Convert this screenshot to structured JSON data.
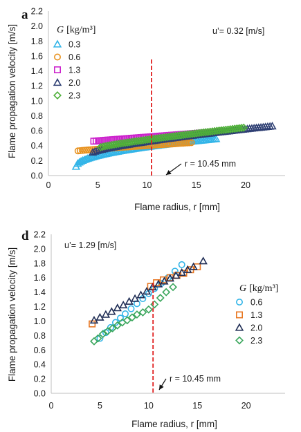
{
  "chart_data": [
    {
      "type": "scatter",
      "panel_letter": "a",
      "annotation_speed": "u’= 0.32 [m/s]",
      "xlabel": "Flame radius, r [mm]",
      "ylabel": "Flame propagation velocity [m/s]",
      "xlim": [
        0,
        24
      ],
      "ylim": [
        0,
        2.2
      ],
      "xticks": [
        0,
        5,
        10,
        15,
        20
      ],
      "yticks": [
        0.0,
        0.2,
        0.4,
        0.6,
        0.8,
        1.0,
        1.2,
        1.4,
        1.6,
        1.8,
        2.0,
        2.2
      ],
      "grid": false,
      "legend_title_symbol": "G",
      "legend_title_unit": "[kg/m³]",
      "legend_position": "top-left",
      "vline_x": 10.45,
      "vline_label": "r = 10.45 mm",
      "series": [
        {
          "name": "0.3",
          "marker": "triangle",
          "color": "#33b5e8",
          "x_start": 2.8,
          "x_end": 17.0,
          "y_start": 0.12,
          "y_end": 0.49,
          "curve": 0.5,
          "count": 85
        },
        {
          "name": "0.6",
          "marker": "circle",
          "color": "#e8921f",
          "x_start": 3.0,
          "x_end": 14.5,
          "y_start": 0.33,
          "y_end": 0.44,
          "curve": 0.9,
          "count": 55
        },
        {
          "name": "1.3",
          "marker": "square",
          "color": "#cc22cc",
          "x_start": 4.6,
          "x_end": 17.5,
          "y_start": 0.46,
          "y_end": 0.59,
          "curve": 1.0,
          "count": 55
        },
        {
          "name": "2.0",
          "marker": "triangle",
          "color": "#2e3f73",
          "x_start": 4.5,
          "x_end": 22.7,
          "y_start": 0.31,
          "y_end": 0.66,
          "curve": 0.75,
          "count": 80
        },
        {
          "name": "2.3",
          "marker": "diamond",
          "color": "#4fb03a",
          "x_start": 5.3,
          "x_end": 19.8,
          "y_start": 0.38,
          "y_end": 0.64,
          "curve": 0.85,
          "count": 65
        }
      ]
    },
    {
      "type": "scatter",
      "panel_letter": "d",
      "annotation_speed": "u’= 1.29 [m/s]",
      "xlabel": "Flame radius, r [mm]",
      "ylabel": "Flame propagation velocity [m/s]",
      "xlim": [
        0,
        24
      ],
      "ylim": [
        0,
        2.2
      ],
      "xticks": [
        0,
        5,
        10,
        15,
        20
      ],
      "yticks": [
        0.0,
        0.2,
        0.4,
        0.6,
        0.8,
        1.0,
        1.2,
        1.4,
        1.6,
        1.8,
        2.0,
        2.2
      ],
      "grid": false,
      "legend_title_symbol": "G",
      "legend_title_unit": "[kg/m³]",
      "legend_position": "right",
      "vline_x": 10.45,
      "vline_label": "r = 10.45 mm",
      "series": [
        {
          "name": "0.6",
          "marker": "circle",
          "color": "#33b5e8",
          "x": [
            5.0,
            5.6,
            6.1,
            6.6,
            7.1,
            7.6,
            8.2,
            8.8,
            9.4,
            10.0,
            10.6,
            11.3,
            12.0,
            12.7,
            13.4
          ],
          "y": [
            0.76,
            0.84,
            0.91,
            0.98,
            1.04,
            1.1,
            1.17,
            1.24,
            1.31,
            1.38,
            1.45,
            1.52,
            1.6,
            1.69,
            1.78
          ]
        },
        {
          "name": "1.3",
          "marker": "square",
          "color": "#e87722",
          "x": [
            4.2,
            10.2,
            10.8,
            11.5,
            12.2,
            12.9,
            13.6,
            14.3,
            15.0
          ],
          "y": [
            0.96,
            1.48,
            1.53,
            1.57,
            1.6,
            1.63,
            1.66,
            1.71,
            1.75
          ]
        },
        {
          "name": "2.0",
          "marker": "triangle",
          "color": "#1f2d55",
          "x": [
            4.4,
            5.0,
            5.6,
            6.2,
            6.8,
            7.4,
            8.0,
            8.6,
            9.2,
            9.8,
            10.4,
            11.0,
            11.6,
            12.2,
            12.8,
            13.4,
            14.0,
            14.6,
            15.6
          ],
          "y": [
            1.01,
            1.05,
            1.09,
            1.13,
            1.18,
            1.22,
            1.27,
            1.31,
            1.36,
            1.41,
            1.47,
            1.51,
            1.55,
            1.59,
            1.63,
            1.67,
            1.71,
            1.75,
            1.83
          ]
        },
        {
          "name": "2.3",
          "marker": "diamond",
          "color": "#3aa65c",
          "x": [
            4.4,
            4.8,
            5.3,
            5.8,
            6.3,
            6.8,
            7.3,
            7.8,
            8.3,
            8.8,
            9.4,
            10.0,
            10.6,
            11.2,
            11.8,
            12.5
          ],
          "y": [
            0.72,
            0.76,
            0.82,
            0.86,
            0.9,
            0.94,
            0.98,
            1.01,
            1.05,
            1.09,
            1.12,
            1.16,
            1.23,
            1.32,
            1.4,
            1.47
          ]
        }
      ]
    }
  ]
}
